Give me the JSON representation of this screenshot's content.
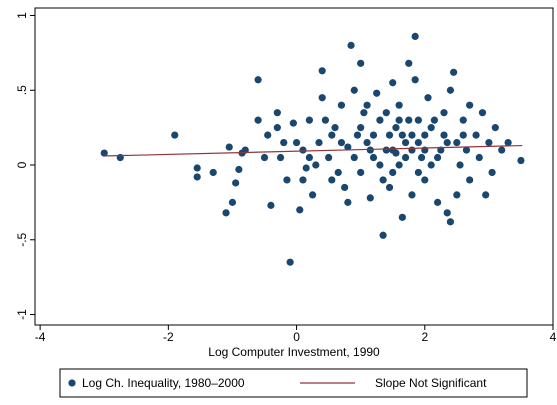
{
  "chart_data": {
    "type": "scatter",
    "x_label": "Log Computer Investment, 1990",
    "xlim": [
      -4.08,
      4
    ],
    "xticks": [
      -4,
      -2,
      0,
      2,
      4
    ],
    "ylim": [
      -1.07,
      1.05
    ],
    "yticks": [
      {
        "value": -1,
        "label": "-1"
      },
      {
        "value": -0.5,
        "label": "-.5"
      },
      0,
      {
        "value": 0.5,
        "label": ".5"
      },
      1
    ],
    "grid": false,
    "legend": "bottom",
    "series": [
      {
        "name": "Log Ch. Inequality, 1980–2000",
        "type": "scatter",
        "color": "#1a476f",
        "x": [
          -3.0,
          -2.75,
          -1.9,
          -1.55,
          -1.55,
          -1.3,
          -1.05,
          -1.1,
          -1.0,
          -0.95,
          -0.9,
          -0.85,
          -0.8,
          -0.6,
          -0.6,
          -0.5,
          -0.45,
          -0.4,
          -0.3,
          -0.3,
          -0.2,
          -0.15,
          -0.1,
          -0.05,
          0.05,
          0.1,
          0.15,
          0.2,
          0.25,
          0.35,
          0.4,
          0.4,
          0.5,
          0.55,
          0.6,
          0.7,
          0.75,
          0.8,
          0.85,
          0.9,
          0.95,
          1.0,
          1.0,
          1.05,
          1.1,
          1.15,
          1.2,
          1.25,
          1.3,
          1.35,
          1.4,
          1.45,
          1.5,
          1.5,
          1.55,
          1.6,
          1.6,
          1.65,
          1.7,
          1.75,
          1.8,
          1.8,
          1.85,
          1.85,
          1.9,
          1.95,
          2.0,
          2.0,
          2.05,
          2.1,
          2.15,
          2.2,
          2.25,
          2.3,
          2.35,
          2.4,
          2.4,
          2.45,
          2.5,
          2.55,
          2.6,
          2.65,
          2.7,
          2.8,
          2.85,
          2.9,
          3.0,
          3.05,
          3.1,
          3.2,
          3.3,
          3.5,
          1.35,
          0.3,
          0.45,
          0.65,
          0.9,
          1.1,
          1.2,
          1.4,
          1.5,
          1.55,
          1.65,
          1.7,
          1.75,
          1.9,
          2.1,
          2.2,
          2.3,
          2.5,
          2.6,
          0.0,
          -0.25,
          0.2,
          0.7,
          1.0,
          1.3,
          1.6,
          1.9,
          2.0,
          2.7,
          0.55,
          1.45,
          2.95,
          0.1,
          0.8,
          1.15,
          1.8,
          2.35
        ],
        "values": [
          0.08,
          0.05,
          0.2,
          -0.02,
          -0.08,
          -0.05,
          0.12,
          -0.32,
          -0.25,
          -0.12,
          -0.03,
          0.08,
          0.1,
          0.57,
          0.3,
          0.05,
          0.2,
          -0.27,
          0.35,
          0.25,
          0.15,
          -0.1,
          -0.65,
          0.28,
          -0.3,
          0.1,
          -0.02,
          0.3,
          -0.2,
          0.15,
          0.45,
          0.63,
          0.05,
          -0.1,
          0.25,
          0.4,
          -0.15,
          0.12,
          0.8,
          0.5,
          0.2,
          0.68,
          -0.05,
          0.35,
          0.15,
          -0.22,
          0.05,
          0.48,
          0.3,
          -0.1,
          0.1,
          0.2,
          0.55,
          -0.05,
          0.25,
          0.0,
          0.4,
          -0.35,
          0.15,
          0.68,
          0.1,
          -0.2,
          0.86,
          0.57,
          0.3,
          0.05,
          -0.1,
          0.2,
          0.45,
          0.0,
          0.3,
          -0.25,
          0.1,
          0.2,
          -0.32,
          0.5,
          -0.38,
          0.62,
          0.15,
          0.0,
          0.3,
          0.1,
          -0.1,
          0.2,
          0.05,
          0.35,
          0.15,
          -0.05,
          0.25,
          0.1,
          0.15,
          0.03,
          -0.47,
          0.0,
          0.3,
          -0.05,
          0.05,
          0.4,
          0.2,
          0.35,
          0.1,
          0.08,
          0.2,
          0.05,
          0.3,
          0.15,
          0.25,
          0.05,
          0.35,
          -0.2,
          0.2,
          0.15,
          0.05,
          0.05,
          0.15,
          0.25,
          0.0,
          0.3,
          -0.05,
          0.1,
          0.4,
          0.2,
          -0.15,
          -0.2,
          -0.1,
          -0.25,
          0.1,
          0.2,
          0.15
        ]
      },
      {
        "name": "Slope Not Significant",
        "type": "line",
        "color": "#90353b",
        "x": [
          -3.02,
          3.52
        ],
        "values": [
          0.06,
          0.13
        ]
      }
    ]
  }
}
